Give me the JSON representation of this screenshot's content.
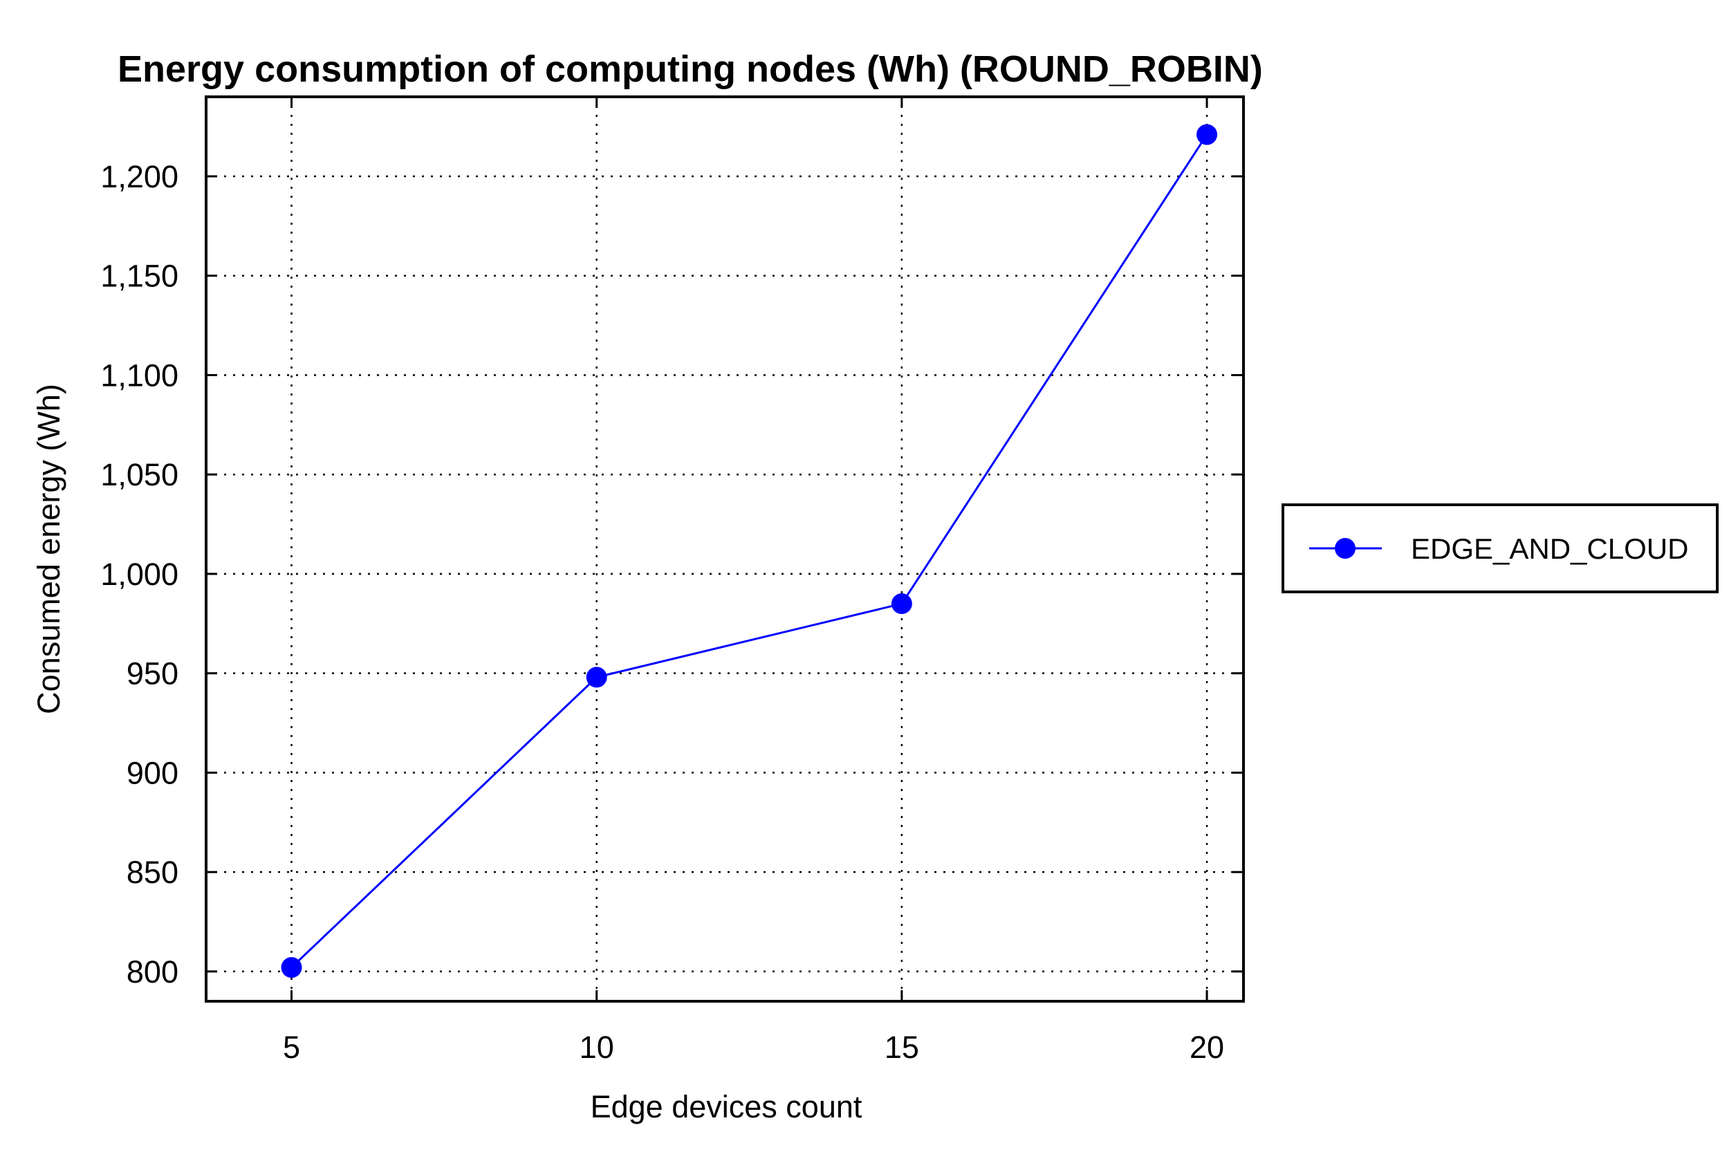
{
  "chart_data": {
    "type": "line",
    "title": "Energy consumption of computing nodes (Wh) (ROUND_ROBIN)",
    "xlabel": "Edge devices count",
    "ylabel": "Consumed energy (Wh)",
    "x": [
      5,
      10,
      15,
      20
    ],
    "x_ticks": [
      5,
      10,
      15,
      20
    ],
    "x_tick_labels": [
      "5",
      "10",
      "15",
      "20"
    ],
    "xlim": [
      3.6,
      20.6
    ],
    "y_ticks": [
      800,
      850,
      900,
      950,
      1000,
      1050,
      1100,
      1150,
      1200
    ],
    "y_tick_labels": [
      "800",
      "850",
      "900",
      "950",
      "1,000",
      "1,050",
      "1,100",
      "1,150",
      "1,200"
    ],
    "ylim": [
      785,
      1240
    ],
    "grid": true,
    "legend_position": "right",
    "series": [
      {
        "name": "EDGE_AND_CLOUD",
        "color": "#0000ff",
        "marker": "circle",
        "values": [
          802,
          948,
          985,
          1221
        ]
      }
    ]
  }
}
